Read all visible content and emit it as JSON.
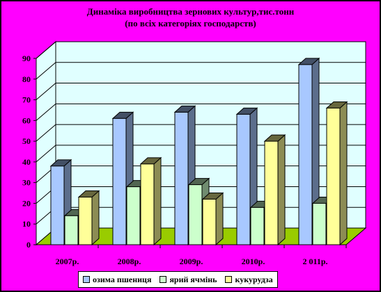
{
  "chart_data": {
    "type": "bar",
    "title": "Динаміка виробництва зернових культур,тис.тонн",
    "subtitle": "(по всіх категоріях господарств)",
    "categories": [
      "2007р.",
      "2008р.",
      "2009р.",
      "2010р.",
      "2 011р."
    ],
    "series": [
      {
        "name": "озима пшениця",
        "values": [
          38,
          61,
          64,
          63,
          87
        ],
        "color": "#a8c8ff"
      },
      {
        "name": "ярий ячмінь",
        "values": [
          14,
          28,
          29,
          18,
          20
        ],
        "color": "#ccffcc"
      },
      {
        "name": "кукурудза",
        "values": [
          23,
          39,
          22,
          50,
          66
        ],
        "color": "#ffff99"
      }
    ],
    "yticks": [
      "0",
      "10",
      "20",
      "30",
      "40",
      "50",
      "60",
      "70",
      "80",
      "90"
    ],
    "ylim": [
      0,
      90
    ],
    "grid": true,
    "legend_position": "bottom",
    "colors": {
      "background": "#ff00ff",
      "plot_wall": "#e0ffff",
      "floor": "#99cc00",
      "border": "#000000"
    }
  }
}
